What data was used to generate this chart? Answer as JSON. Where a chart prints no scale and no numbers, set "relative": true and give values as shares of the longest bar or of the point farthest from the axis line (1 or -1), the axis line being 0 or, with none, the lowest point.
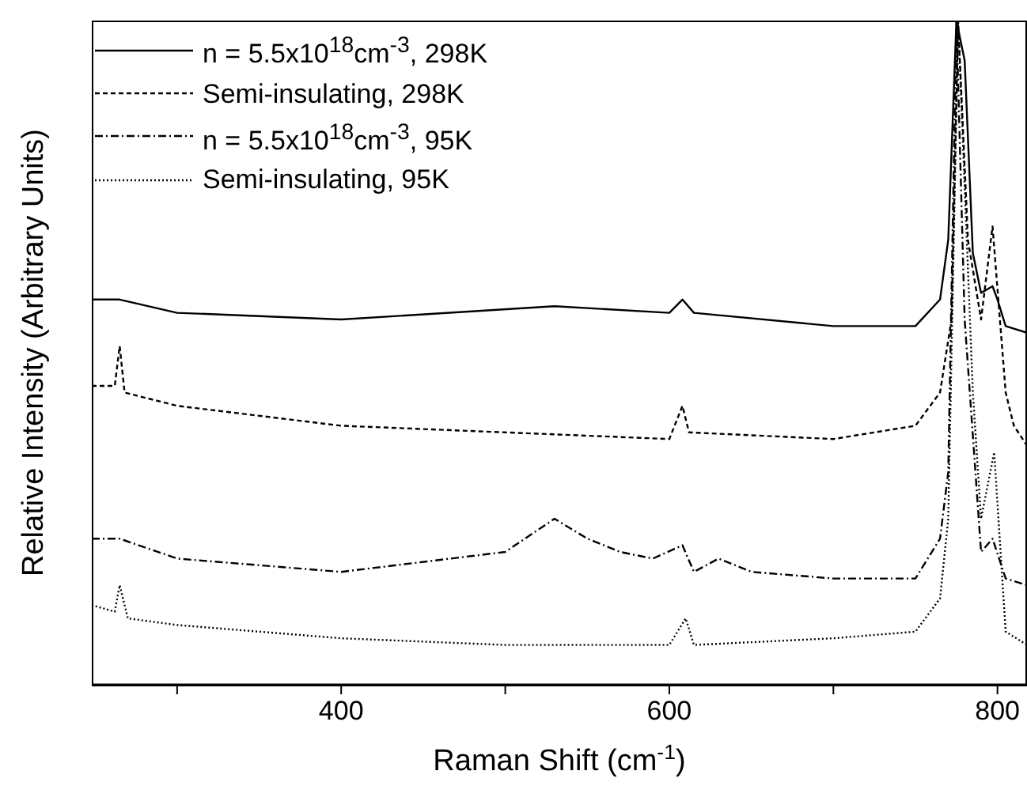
{
  "chart_data": {
    "type": "line",
    "relative": true,
    "xlabel": "Raman Shift (cm$^{-1}$)",
    "ylabel": "Relative Intensity (Arbitrary Units)",
    "xlim": [
      248,
      818
    ],
    "xticks": [
      {
        "value": 300,
        "label": null
      },
      400,
      {
        "value": 500,
        "label": null
      },
      600,
      {
        "value": 700,
        "label": null
      },
      800
    ],
    "legend": "top left",
    "grid": false,
    "marker": "none",
    "series": [
      {
        "name": "n = 5.5x10$^{18}$cm$^{-3}$, 298K",
        "color": "#000000",
        "line_style": "solid",
        "x": [
          248,
          265,
          300,
          400,
          530,
          600,
          608,
          615,
          700,
          750,
          765,
          770,
          775,
          780,
          785,
          790,
          797,
          800,
          805,
          818
        ],
        "values": [
          0.58,
          0.58,
          0.56,
          0.55,
          0.57,
          0.56,
          0.58,
          0.56,
          0.54,
          0.54,
          0.58,
          0.67,
          1,
          0.94,
          0.65,
          0.59,
          0.6,
          0.58,
          0.54,
          0.53
        ]
      },
      {
        "name": "Semi-insulating, 298K",
        "color": "#000000",
        "line_style": "dashed",
        "x": [
          248,
          262,
          265,
          268,
          300,
          400,
          500,
          600,
          608,
          612,
          700,
          750,
          765,
          772,
          776,
          782,
          790,
          797,
          805,
          810,
          818
        ],
        "values": [
          0.45,
          0.45,
          0.51,
          0.44,
          0.42,
          0.39,
          0.38,
          0.37,
          0.42,
          0.38,
          0.37,
          0.39,
          0.44,
          0.55,
          1,
          0.67,
          0.55,
          0.69,
          0.44,
          0.39,
          0.36
        ]
      },
      {
        "name": "n = 5.5x10$^{18}$cm$^{-3}$, 95K",
        "color": "#000000",
        "line_style": "dashdot",
        "x": [
          248,
          265,
          300,
          350,
          400,
          500,
          530,
          550,
          570,
          590,
          608,
          615,
          630,
          650,
          700,
          750,
          765,
          770,
          775,
          780,
          790,
          797,
          805,
          818
        ],
        "values": [
          0.22,
          0.22,
          0.19,
          0.18,
          0.17,
          0.2,
          0.25,
          0.22,
          0.2,
          0.19,
          0.21,
          0.17,
          0.19,
          0.17,
          0.16,
          0.16,
          0.22,
          0.32,
          1,
          0.55,
          0.2,
          0.22,
          0.16,
          0.15
        ]
      },
      {
        "name": "Semi-insulating, 95K",
        "color": "#000000",
        "line_style": "dotted",
        "x": [
          248,
          262,
          265,
          270,
          300,
          400,
          500,
          600,
          610,
          615,
          700,
          750,
          765,
          770,
          776,
          785,
          790,
          798,
          805,
          818
        ],
        "values": [
          0.12,
          0.11,
          0.15,
          0.1,
          0.09,
          0.07,
          0.06,
          0.06,
          0.1,
          0.06,
          0.07,
          0.08,
          0.13,
          0.25,
          1,
          0.44,
          0.25,
          0.35,
          0.08,
          0.06
        ]
      }
    ]
  }
}
